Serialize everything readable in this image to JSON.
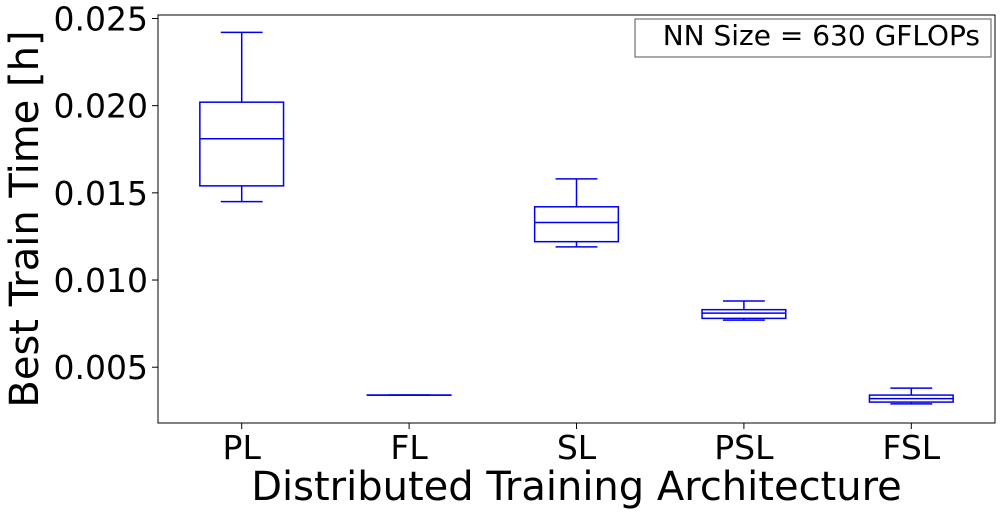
{
  "chart_data": {
    "type": "box",
    "xlabel": "Distributed Training Architecture",
    "ylabel": "Best Train Time [h]",
    "annotation": "NN Size = 630 GFLOPs",
    "annotation_position": "top-right",
    "ylim": [
      0.0018,
      0.0252
    ],
    "yticks": [
      0.005,
      0.01,
      0.015,
      0.02,
      0.025
    ],
    "ytick_labels": [
      "0.005",
      "0.010",
      "0.015",
      "0.020",
      "0.025"
    ],
    "categories": [
      "PL",
      "FL",
      "SL",
      "PSL",
      "FSL"
    ],
    "box_color": "#0000ee",
    "grid": false,
    "boxes": [
      {
        "label": "PL",
        "whisker_low": 0.0145,
        "q1": 0.0154,
        "median": 0.0181,
        "q3": 0.0202,
        "whisker_high": 0.0242
      },
      {
        "label": "FL",
        "whisker_low": 0.0034,
        "q1": 0.0034,
        "median": 0.0034,
        "q3": 0.0034,
        "whisker_high": 0.0034
      },
      {
        "label": "SL",
        "whisker_low": 0.0119,
        "q1": 0.0122,
        "median": 0.0133,
        "q3": 0.0142,
        "whisker_high": 0.0158
      },
      {
        "label": "PSL",
        "whisker_low": 0.0077,
        "q1": 0.0078,
        "median": 0.0081,
        "q3": 0.0083,
        "whisker_high": 0.0088
      },
      {
        "label": "FSL",
        "whisker_low": 0.0029,
        "q1": 0.003,
        "median": 0.0032,
        "q3": 0.0034,
        "whisker_high": 0.0038
      }
    ]
  }
}
